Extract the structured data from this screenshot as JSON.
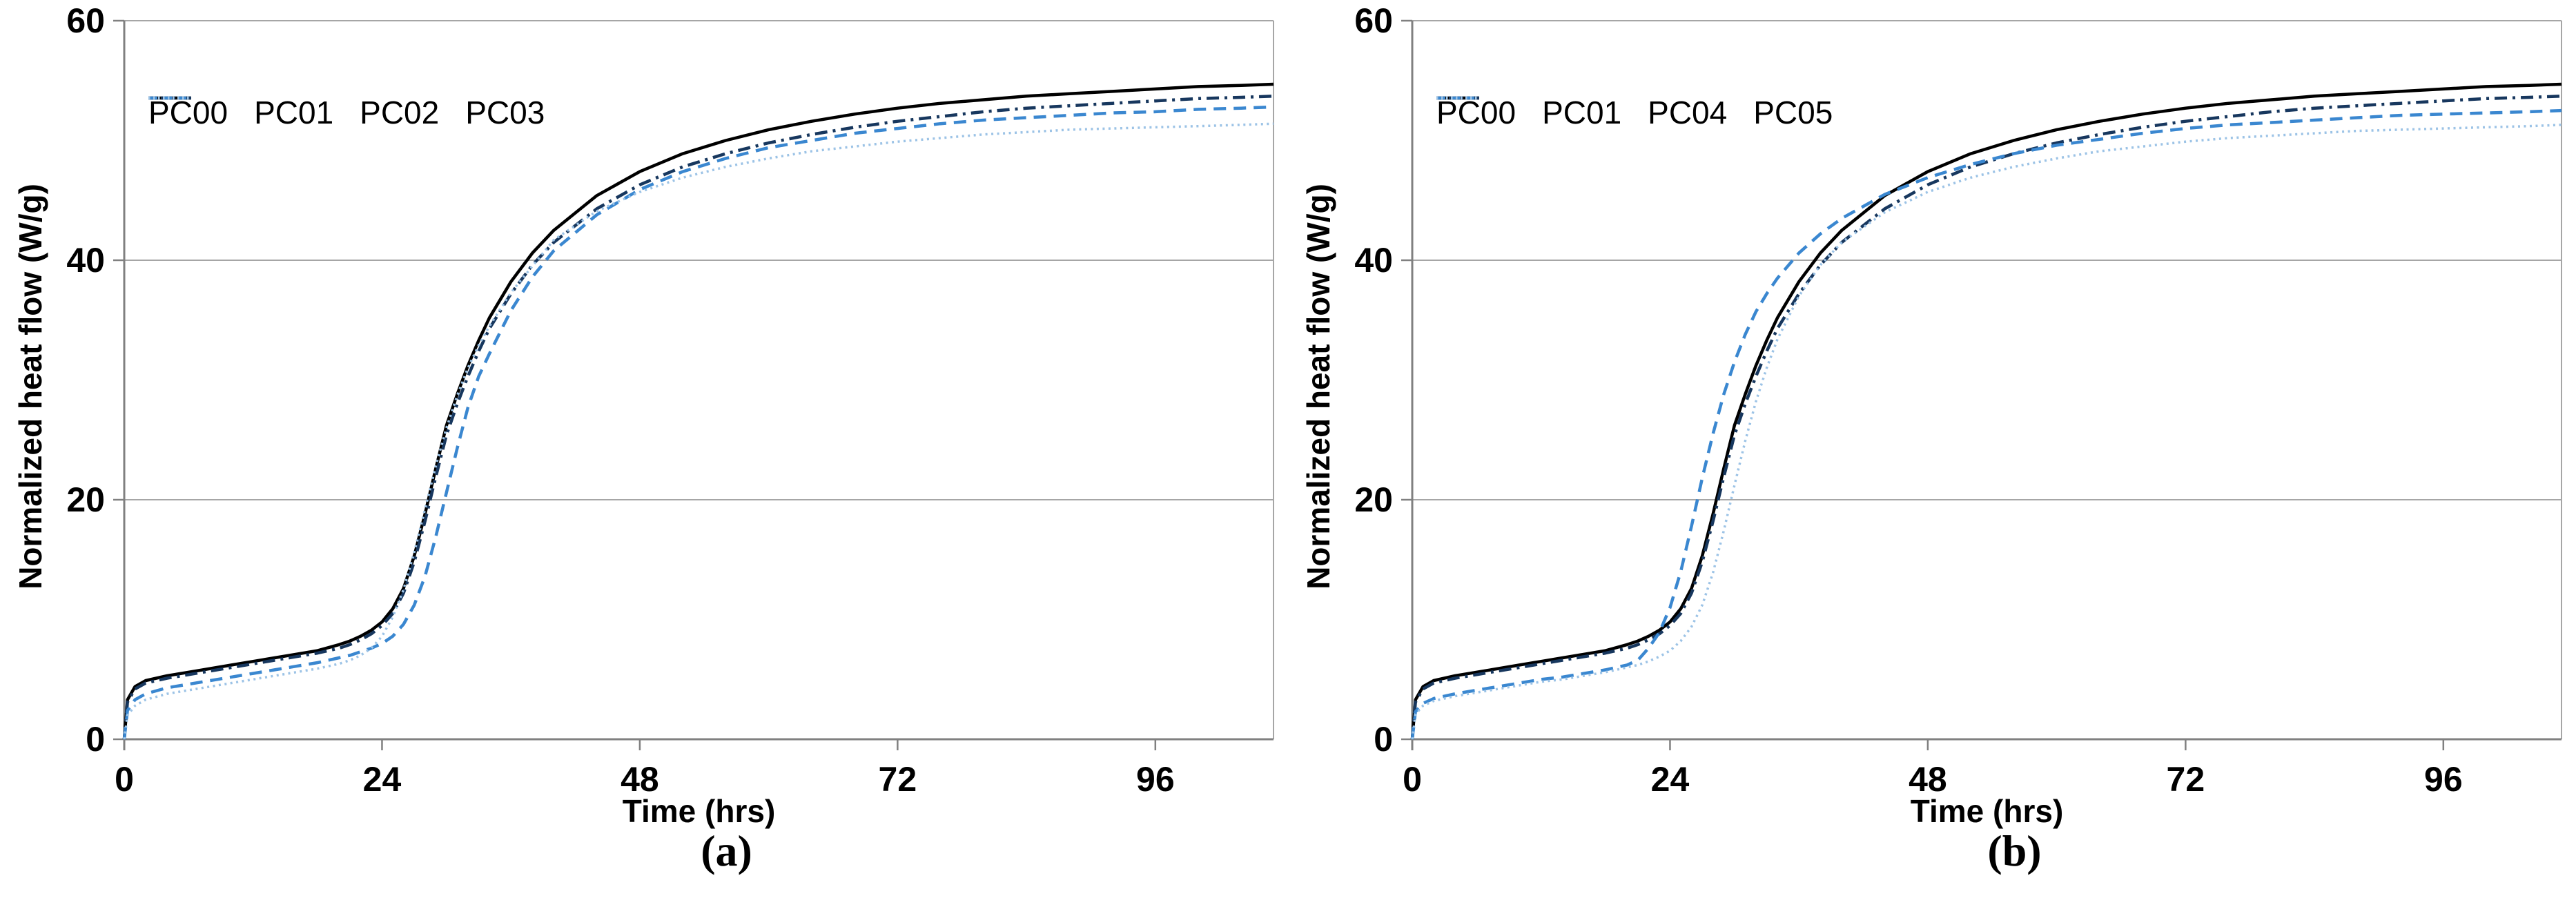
{
  "figure": {
    "description": "Two-panel line chart figure of normalized heat flow versus time",
    "background": "#ffffff",
    "grid_color": "#a6a6a6",
    "axis_color": "#808080",
    "text_color": "#000000"
  },
  "chart_data": [
    {
      "type": "line",
      "caption": "(a)",
      "xlabel": "Time (hrs)",
      "ylabel": "Normalized heat flow (W/g)",
      "xlim": [
        0,
        107
      ],
      "ylim": [
        0,
        60
      ],
      "x_ticks": [
        0,
        24,
        48,
        72,
        96
      ],
      "y_ticks": [
        0,
        20,
        40,
        60
      ],
      "grid": "horizontal",
      "legend_position": "top-left-inline",
      "x": [
        0,
        0.3,
        1,
        2,
        4,
        6,
        8,
        10,
        12,
        14,
        16,
        18,
        20,
        21,
        22,
        23,
        24,
        25,
        26,
        27,
        28,
        29,
        30,
        31,
        32,
        33,
        34,
        36,
        38,
        40,
        44,
        48,
        52,
        56,
        60,
        64,
        68,
        72,
        76,
        80,
        84,
        88,
        92,
        96,
        100,
        104,
        107
      ],
      "series": [
        {
          "name": "PC00",
          "style": "solid",
          "color": "#000000",
          "values": [
            0,
            3.3,
            4.4,
            4.9,
            5.3,
            5.6,
            5.9,
            6.2,
            6.5,
            6.8,
            7.1,
            7.4,
            7.9,
            8.2,
            8.6,
            9.1,
            9.8,
            10.9,
            12.6,
            15.3,
            18.8,
            22.6,
            26.2,
            28.8,
            31.2,
            33.3,
            35.2,
            38.2,
            40.6,
            42.5,
            45.4,
            47.4,
            48.9,
            50.0,
            50.9,
            51.6,
            52.2,
            52.7,
            53.1,
            53.4,
            53.7,
            53.9,
            54.1,
            54.3,
            54.5,
            54.6,
            54.7
          ]
        },
        {
          "name": "PC01",
          "style": "dashdot",
          "color": "#17375e",
          "values": [
            0,
            3.1,
            4.2,
            4.7,
            5.1,
            5.4,
            5.7,
            6.0,
            6.3,
            6.6,
            6.9,
            7.2,
            7.6,
            7.9,
            8.3,
            8.8,
            9.5,
            10.5,
            12.2,
            14.8,
            18.2,
            21.9,
            25.4,
            28.0,
            30.3,
            32.4,
            34.3,
            37.2,
            39.6,
            41.5,
            44.3,
            46.3,
            47.8,
            48.9,
            49.8,
            50.5,
            51.1,
            51.6,
            52.0,
            52.4,
            52.7,
            52.9,
            53.1,
            53.3,
            53.5,
            53.6,
            53.7
          ]
        },
        {
          "name": "PC02",
          "style": "dashed",
          "color": "#3a87d0",
          "values": [
            0,
            2.4,
            3.3,
            3.8,
            4.3,
            4.6,
            4.9,
            5.2,
            5.5,
            5.8,
            6.1,
            6.4,
            6.8,
            7.0,
            7.3,
            7.6,
            8.0,
            8.6,
            9.6,
            11.2,
            13.6,
            16.9,
            20.6,
            24.3,
            27.7,
            30.3,
            32.2,
            35.8,
            38.6,
            40.8,
            43.8,
            45.9,
            47.4,
            48.5,
            49.4,
            50.0,
            50.6,
            51.0,
            51.4,
            51.7,
            51.9,
            52.1,
            52.3,
            52.4,
            52.6,
            52.7,
            52.8
          ]
        },
        {
          "name": "PC03",
          "style": "dotted",
          "color": "#9cc3e6",
          "values": [
            0,
            2.0,
            2.8,
            3.3,
            3.8,
            4.1,
            4.4,
            4.7,
            5.0,
            5.3,
            5.6,
            5.9,
            6.3,
            6.6,
            7.0,
            7.6,
            8.6,
            10.2,
            12.5,
            15.6,
            19.2,
            22.8,
            26.0,
            28.7,
            31.0,
            32.9,
            34.5,
            37.3,
            39.5,
            41.7,
            44.1,
            45.7,
            46.9,
            47.8,
            48.5,
            49.1,
            49.5,
            49.9,
            50.2,
            50.5,
            50.7,
            50.9,
            51.0,
            51.1,
            51.2,
            51.3,
            51.4
          ]
        }
      ]
    },
    {
      "type": "line",
      "caption": "(b)",
      "xlabel": "Time (hrs)",
      "ylabel": "Normalized heat flow (W/g)",
      "xlim": [
        0,
        107
      ],
      "ylim": [
        0,
        60
      ],
      "x_ticks": [
        0,
        24,
        48,
        72,
        96
      ],
      "y_ticks": [
        0,
        20,
        40,
        60
      ],
      "grid": "horizontal",
      "legend_position": "top-left-inline",
      "x": [
        0,
        0.3,
        1,
        2,
        4,
        6,
        8,
        10,
        12,
        14,
        16,
        18,
        20,
        21,
        22,
        23,
        24,
        25,
        26,
        27,
        28,
        29,
        30,
        31,
        32,
        33,
        34,
        36,
        38,
        40,
        44,
        48,
        52,
        56,
        60,
        64,
        68,
        72,
        76,
        80,
        84,
        88,
        92,
        96,
        100,
        104,
        107
      ],
      "series": [
        {
          "name": "PC00",
          "style": "solid",
          "color": "#000000",
          "values": [
            0,
            3.3,
            4.4,
            4.9,
            5.3,
            5.6,
            5.9,
            6.2,
            6.5,
            6.8,
            7.1,
            7.4,
            7.9,
            8.2,
            8.6,
            9.1,
            9.8,
            10.9,
            12.6,
            15.3,
            18.8,
            22.6,
            26.2,
            28.8,
            31.2,
            33.3,
            35.2,
            38.2,
            40.6,
            42.5,
            45.4,
            47.4,
            48.9,
            50.0,
            50.9,
            51.6,
            52.2,
            52.7,
            53.1,
            53.4,
            53.7,
            53.9,
            54.1,
            54.3,
            54.5,
            54.6,
            54.7
          ]
        },
        {
          "name": "PC01",
          "style": "dashdot",
          "color": "#17375e",
          "values": [
            0,
            3.1,
            4.2,
            4.7,
            5.1,
            5.4,
            5.7,
            6.0,
            6.3,
            6.6,
            6.9,
            7.2,
            7.6,
            7.9,
            8.3,
            8.8,
            9.5,
            10.5,
            12.2,
            14.8,
            18.2,
            21.9,
            25.4,
            28.0,
            30.3,
            32.4,
            34.3,
            37.2,
            39.6,
            41.5,
            44.3,
            46.3,
            47.8,
            48.9,
            49.8,
            50.5,
            51.1,
            51.6,
            52.0,
            52.4,
            52.7,
            52.9,
            53.1,
            53.3,
            53.5,
            53.6,
            53.7
          ]
        },
        {
          "name": "PC04",
          "style": "dashed",
          "color": "#3a87d0",
          "values": [
            0,
            2.3,
            3.0,
            3.4,
            3.8,
            4.1,
            4.4,
            4.7,
            5.0,
            5.2,
            5.5,
            5.8,
            6.2,
            6.6,
            7.6,
            8.9,
            11.0,
            14.0,
            17.8,
            21.8,
            25.5,
            28.8,
            31.5,
            33.8,
            35.7,
            37.2,
            38.5,
            40.6,
            42.2,
            43.5,
            45.5,
            46.9,
            48.0,
            48.9,
            49.6,
            50.1,
            50.6,
            51.0,
            51.3,
            51.5,
            51.7,
            51.9,
            52.1,
            52.2,
            52.3,
            52.4,
            52.5
          ]
        },
        {
          "name": "PC05",
          "style": "dotted",
          "color": "#9cc3e6",
          "values": [
            0,
            2.1,
            2.8,
            3.2,
            3.6,
            3.9,
            4.2,
            4.5,
            4.8,
            5.0,
            5.3,
            5.6,
            6.0,
            6.2,
            6.5,
            6.9,
            7.4,
            8.2,
            9.4,
            11.2,
            13.9,
            17.4,
            21.2,
            24.9,
            28.2,
            31.0,
            33.4,
            37.0,
            39.6,
            41.5,
            44.0,
            45.7,
            46.9,
            47.8,
            48.5,
            49.1,
            49.5,
            49.9,
            50.2,
            50.4,
            50.6,
            50.8,
            50.9,
            51.0,
            51.1,
            51.2,
            51.3
          ]
        }
      ]
    }
  ]
}
